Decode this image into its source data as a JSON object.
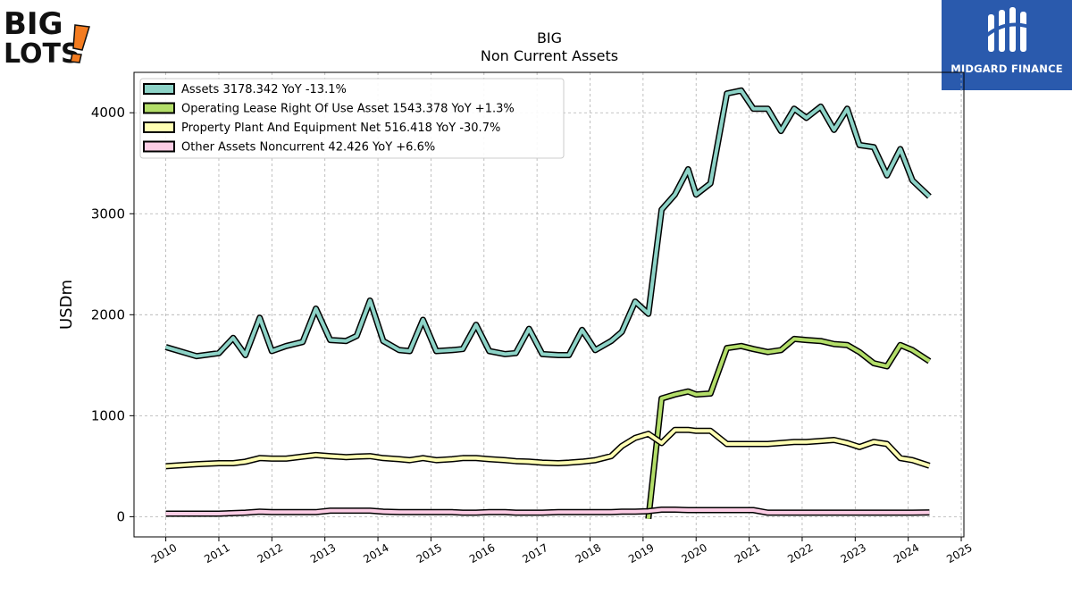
{
  "logos": {
    "left_brand": "BIG LOTS!",
    "left_line1": "BIG",
    "left_line2": "LOTS",
    "right_brand": "MIDGARD FINANCE"
  },
  "colors": {
    "assets": "#8dd3c7",
    "operating_lease": "#b3de69",
    "ppe": "#ffffb3",
    "other": "#fccde5",
    "outline": "#000000",
    "grid": "#b0b0b0",
    "midgard_bg": "#2a5aad",
    "biglots_accent": "#f47c20"
  },
  "chart_data": {
    "type": "line",
    "title": "BIG",
    "subtitle": "Non Current  Assets",
    "ylabel": "USDm",
    "xlabel": "",
    "ylim": [
      -200,
      4400
    ],
    "xlim": [
      2009.4,
      2025.05
    ],
    "grid": true,
    "legend_position": "top-left",
    "x_ticks": [
      "2010",
      "2011",
      "2012",
      "2013",
      "2014",
      "2015",
      "2016",
      "2017",
      "2018",
      "2019",
      "2020",
      "2021",
      "2022",
      "2023",
      "2024",
      "2025"
    ],
    "y_ticks": [
      "0",
      "1000",
      "2000",
      "3000",
      "4000"
    ],
    "series": [
      {
        "name": "Assets",
        "legend": "Assets  3178.342 YoY -13.1%",
        "color": "#8dd3c7",
        "x": [
          2010.0,
          2010.58,
          2011.0,
          2011.27,
          2011.5,
          2011.77,
          2012.0,
          2012.27,
          2012.58,
          2012.83,
          2013.1,
          2013.4,
          2013.6,
          2013.85,
          2014.1,
          2014.4,
          2014.6,
          2014.85,
          2015.1,
          2015.4,
          2015.6,
          2015.85,
          2016.1,
          2016.4,
          2016.6,
          2016.85,
          2017.1,
          2017.4,
          2017.6,
          2017.85,
          2018.1,
          2018.4,
          2018.6,
          2018.85,
          2019.1,
          2019.35,
          2019.6,
          2019.85,
          2020.0,
          2020.27,
          2020.58,
          2020.85,
          2021.08,
          2021.35,
          2021.6,
          2021.85,
          2022.08,
          2022.35,
          2022.6,
          2022.85,
          2023.08,
          2023.35,
          2023.6,
          2023.85,
          2024.08,
          2024.4
        ],
        "y": [
          1680,
          1590,
          1620,
          1770,
          1600,
          1970,
          1640,
          1690,
          1730,
          2060,
          1750,
          1740,
          1790,
          2140,
          1740,
          1650,
          1640,
          1950,
          1640,
          1650,
          1660,
          1900,
          1640,
          1610,
          1620,
          1860,
          1610,
          1600,
          1600,
          1850,
          1650,
          1740,
          1830,
          2130,
          2010,
          3040,
          3190,
          3440,
          3190,
          3300,
          4190,
          4220,
          4040,
          4040,
          3820,
          4040,
          3950,
          4060,
          3830,
          4040,
          3680,
          3660,
          3380,
          3640,
          3330,
          3170
        ]
      },
      {
        "name": "Operating Lease Right Of Use Asset",
        "legend": "Operating Lease Right Of Use Asset  1543.378 YoY +1.3%",
        "color": "#b3de69",
        "x": [
          2019.1,
          2019.35,
          2019.6,
          2019.85,
          2020.0,
          2020.27,
          2020.58,
          2020.85,
          2021.08,
          2021.35,
          2021.6,
          2021.85,
          2022.08,
          2022.35,
          2022.6,
          2022.85,
          2023.08,
          2023.35,
          2023.6,
          2023.85,
          2024.08,
          2024.4
        ],
        "y": [
          -20,
          1170,
          1210,
          1240,
          1210,
          1220,
          1670,
          1690,
          1660,
          1630,
          1650,
          1760,
          1750,
          1740,
          1710,
          1700,
          1630,
          1520,
          1490,
          1700,
          1650,
          1540
        ]
      },
      {
        "name": "Property Plant And Equipment Net",
        "legend": "Property Plant And Equipment Net  516.418 YoY -30.7%",
        "color": "#ffffb3",
        "x": [
          2010.0,
          2010.58,
          2011.0,
          2011.27,
          2011.5,
          2011.77,
          2012.0,
          2012.27,
          2012.58,
          2012.83,
          2013.1,
          2013.4,
          2013.6,
          2013.85,
          2014.1,
          2014.4,
          2014.6,
          2014.85,
          2015.1,
          2015.4,
          2015.6,
          2015.85,
          2016.1,
          2016.4,
          2016.6,
          2016.85,
          2017.1,
          2017.4,
          2017.6,
          2017.85,
          2018.1,
          2018.4,
          2018.6,
          2018.85,
          2019.1,
          2019.35,
          2019.6,
          2019.85,
          2020.0,
          2020.27,
          2020.58,
          2020.85,
          2021.08,
          2021.35,
          2021.6,
          2021.85,
          2022.08,
          2022.35,
          2022.6,
          2022.85,
          2023.08,
          2023.35,
          2023.6,
          2023.85,
          2024.08,
          2024.4
        ],
        "y": [
          500,
          520,
          530,
          530,
          545,
          580,
          575,
          575,
          595,
          610,
          600,
          590,
          595,
          600,
          580,
          570,
          560,
          580,
          560,
          570,
          580,
          580,
          570,
          560,
          550,
          545,
          535,
          530,
          535,
          545,
          560,
          600,
          700,
          780,
          820,
          730,
          860,
          860,
          850,
          850,
          720,
          720,
          720,
          720,
          730,
          740,
          740,
          750,
          760,
          730,
          690,
          740,
          720,
          580,
          560,
          505
        ]
      },
      {
        "name": "Other Assets Noncurrent",
        "legend": "Other Assets Noncurrent  42.426 YoY +6.6%",
        "color": "#fccde5",
        "x": [
          2010.0,
          2010.58,
          2011.0,
          2011.27,
          2011.5,
          2011.77,
          2012.0,
          2012.27,
          2012.58,
          2012.83,
          2013.1,
          2013.4,
          2013.6,
          2013.85,
          2014.1,
          2014.4,
          2014.6,
          2014.85,
          2015.1,
          2015.4,
          2015.6,
          2015.85,
          2016.1,
          2016.4,
          2016.6,
          2016.85,
          2017.1,
          2017.4,
          2017.6,
          2017.85,
          2018.1,
          2018.4,
          2018.6,
          2018.85,
          2019.1,
          2019.35,
          2019.6,
          2019.85,
          2020.0,
          2020.27,
          2020.58,
          2020.85,
          2021.08,
          2021.35,
          2021.6,
          2021.85,
          2022.08,
          2022.35,
          2022.6,
          2022.85,
          2023.08,
          2023.35,
          2023.6,
          2023.85,
          2024.08,
          2024.4
        ],
        "y": [
          30,
          30,
          30,
          35,
          40,
          50,
          45,
          45,
          45,
          45,
          60,
          60,
          60,
          60,
          50,
          45,
          45,
          45,
          45,
          45,
          40,
          40,
          45,
          45,
          40,
          40,
          40,
          45,
          45,
          45,
          45,
          45,
          50,
          50,
          55,
          70,
          70,
          65,
          65,
          65,
          65,
          65,
          65,
          40,
          40,
          40,
          40,
          40,
          40,
          40,
          40,
          40,
          40,
          40,
          40,
          42
        ]
      }
    ]
  }
}
